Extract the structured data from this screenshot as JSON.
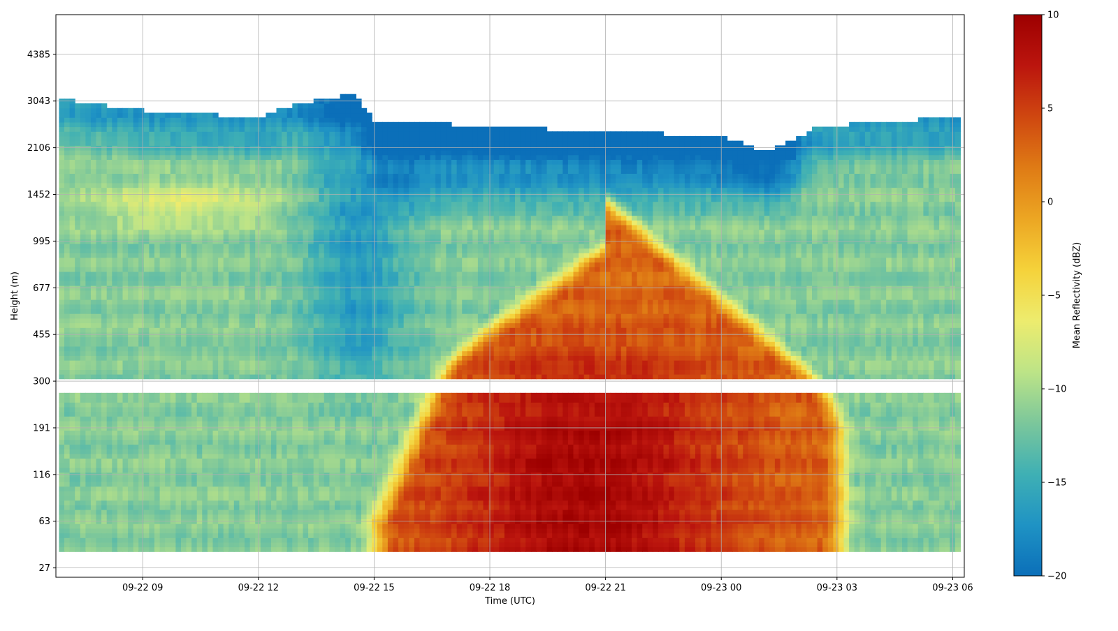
{
  "chart_data": {
    "type": "heatmap",
    "title": "",
    "xlabel": "Time (UTC)",
    "ylabel": "Height (m)",
    "x_ticks": [
      "09-22 09",
      "09-22 12",
      "09-22 15",
      "09-22 18",
      "09-22 21",
      "09-23 00",
      "09-23 03",
      "09-23 06"
    ],
    "x_tick_hours": [
      9,
      12,
      15,
      18,
      21,
      24,
      27,
      30
    ],
    "xlim_hours": [
      6.75,
      30.3
    ],
    "data_x_range_hours": [
      6.83,
      30.2
    ],
    "y_ticks": [
      "27",
      "63",
      "116",
      "191",
      "300",
      "455",
      "677",
      "995",
      "1452",
      "2106",
      "3043",
      "4385"
    ],
    "y_scale": "tick-index (uneven, ~log)",
    "ylim_tick_index": [
      -0.2,
      11.85
    ],
    "grid": true,
    "colorbar": {
      "label": "Mean Reflectivity (dBZ)",
      "min": -20,
      "max": 10,
      "ticks": [
        "10",
        "5",
        "0",
        "−5",
        "−10",
        "−15",
        "−20"
      ],
      "tick_values": [
        10,
        5,
        0,
        -5,
        -10,
        -15,
        -20
      ],
      "colors": [
        "#0b6fb9",
        "#1f93c4",
        "#3fb0b4",
        "#7cc79b",
        "#bde487",
        "#edec6e",
        "#f5d23a",
        "#eca623",
        "#df7b15",
        "#cf4710",
        "#bb150e",
        "#9d0000"
      ]
    },
    "data_gaps_height_m": [
      "250 (horizontal gap near 300)",
      "below ~40"
    ],
    "estimated_field": {
      "description": "Mean reflectivity (dBZ) vs time (hours since 09-22 00 UTC) and height index",
      "cloud_top_tick_index": [
        [
          6.8,
          10.0
        ],
        [
          9.0,
          9.75
        ],
        [
          12.0,
          9.6
        ],
        [
          13.0,
          9.9
        ],
        [
          14.5,
          10.1
        ],
        [
          15.0,
          9.55
        ],
        [
          18.0,
          9.4
        ],
        [
          21.0,
          9.3
        ],
        [
          24.0,
          9.2
        ],
        [
          25.2,
          8.85
        ],
        [
          26.5,
          9.4
        ],
        [
          28.0,
          9.5
        ],
        [
          30.2,
          9.6
        ]
      ],
      "rain_event_hours": [
        15.0,
        27.0
      ],
      "max_reflectivity_dbz": 9,
      "min_reflectivity_dbz": -19
    }
  }
}
